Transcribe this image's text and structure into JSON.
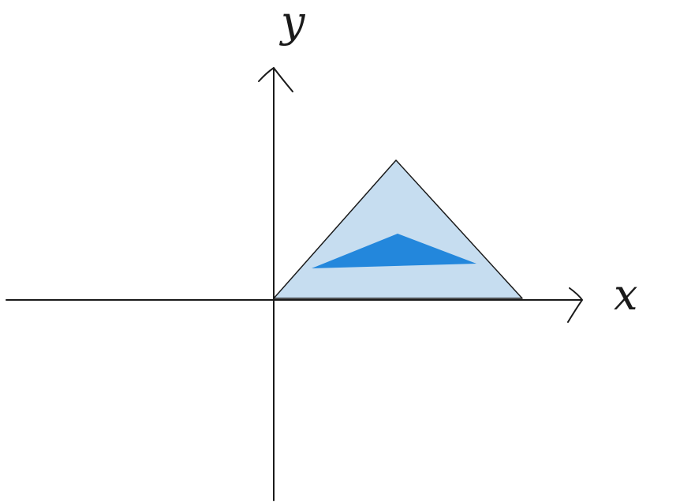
{
  "axes": {
    "x_label": "x",
    "y_label": "y",
    "stroke_color": "#1a1a1a"
  },
  "shapes": {
    "outer_triangle": {
      "fill": "#c6ddf0",
      "stroke": "#1a1a1a"
    },
    "inner_triangle": {
      "fill": "#2387dc"
    }
  }
}
